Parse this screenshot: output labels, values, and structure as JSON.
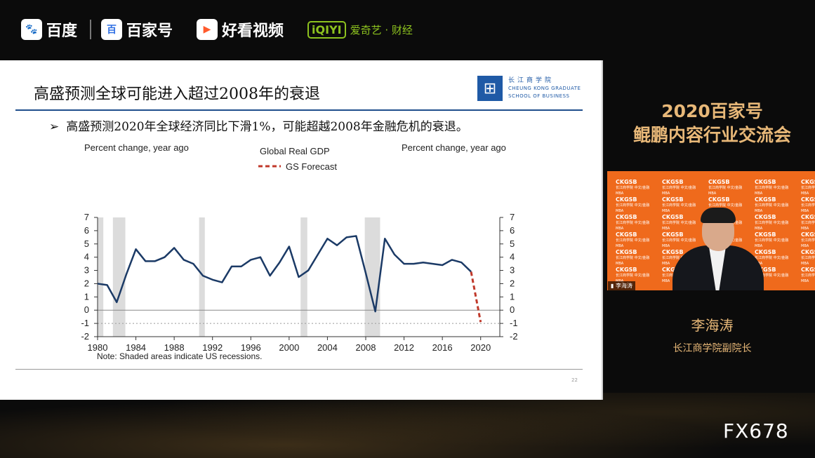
{
  "header": {
    "logos": [
      {
        "label": "百度",
        "icon": "baidu-paw-icon",
        "color": "#2f6fe4"
      },
      {
        "label": "百家号",
        "icon": "baijiahao-icon",
        "color": "#2f6fe4"
      },
      {
        "label": "好看视频",
        "icon": "play-icon",
        "color": "#ff5a2c"
      },
      {
        "label": "爱奇艺 · 财经",
        "mark": "iQIYI",
        "color": "#8dc21f"
      }
    ]
  },
  "slide": {
    "title": "高盛预测全球可能进入超过2008年的衰退",
    "bullet": "高盛预测2020年全球经济同比下滑1%，可能超越2008年金融危机的衰退。",
    "school_logo": {
      "cn": "长江商学院",
      "en1": "CHEUNG KONG GRADUATE",
      "en2": "SCHOOL OF BUSINESS"
    },
    "page_number": "22"
  },
  "chart_data": {
    "type": "line",
    "title": "Global Real GDP",
    "ylabel_left": "Percent change, year ago",
    "ylabel_right": "Percent change, year ago",
    "note": "Note: Shaded areas indicate US recessions.",
    "xlim": [
      1980,
      2022
    ],
    "ylim": [
      -2,
      7
    ],
    "xticks": [
      1980,
      1984,
      1988,
      1992,
      1996,
      2000,
      2004,
      2008,
      2012,
      2016,
      2020
    ],
    "yticks": [
      7,
      6,
      5,
      4,
      3,
      2,
      1,
      0,
      -1,
      -2
    ],
    "recessions": [
      [
        1980.0,
        1980.6
      ],
      [
        1981.6,
        1982.9
      ],
      [
        1990.6,
        1991.2
      ],
      [
        2001.2,
        2001.9
      ],
      [
        2007.9,
        2009.5
      ]
    ],
    "series": [
      {
        "name": "Global Real GDP",
        "color": "#1b3a66",
        "style": "solid",
        "x": [
          1980,
          1981,
          1982,
          1983,
          1984,
          1985,
          1986,
          1987,
          1988,
          1989,
          1990,
          1991,
          1992,
          1993,
          1994,
          1995,
          1996,
          1997,
          1998,
          1999,
          2000,
          2001,
          2002,
          2003,
          2004,
          2005,
          2006,
          2007,
          2008,
          2009,
          2010,
          2011,
          2012,
          2013,
          2014,
          2015,
          2016,
          2017,
          2018,
          2019
        ],
        "y": [
          2.0,
          1.9,
          0.6,
          2.7,
          4.6,
          3.7,
          3.7,
          4.0,
          4.7,
          3.8,
          3.5,
          2.6,
          2.3,
          2.1,
          3.3,
          3.3,
          3.8,
          4.0,
          2.6,
          3.6,
          4.8,
          2.5,
          3.0,
          4.2,
          5.4,
          4.9,
          5.5,
          5.6,
          2.8,
          -0.1,
          5.4,
          4.2,
          3.5,
          3.5,
          3.6,
          3.5,
          3.4,
          3.8,
          3.6,
          2.9
        ]
      },
      {
        "name": "GS Forecast",
        "color": "#c0392b",
        "style": "dashed",
        "x": [
          2019,
          2020
        ],
        "y": [
          2.9,
          -0.9
        ]
      }
    ],
    "legend_placement": "top-center"
  },
  "sidebar": {
    "event_line1": "2020百家号",
    "event_line2": "鲲鹏内容行业交流会",
    "camera_label": "李海涛",
    "backdrop_logo": "CKGSB",
    "backdrop_text": "长江商学院 中文/金融MBA",
    "speaker_name": "李海涛",
    "speaker_title": "长江商学院副院长"
  },
  "watermark": "FX678"
}
